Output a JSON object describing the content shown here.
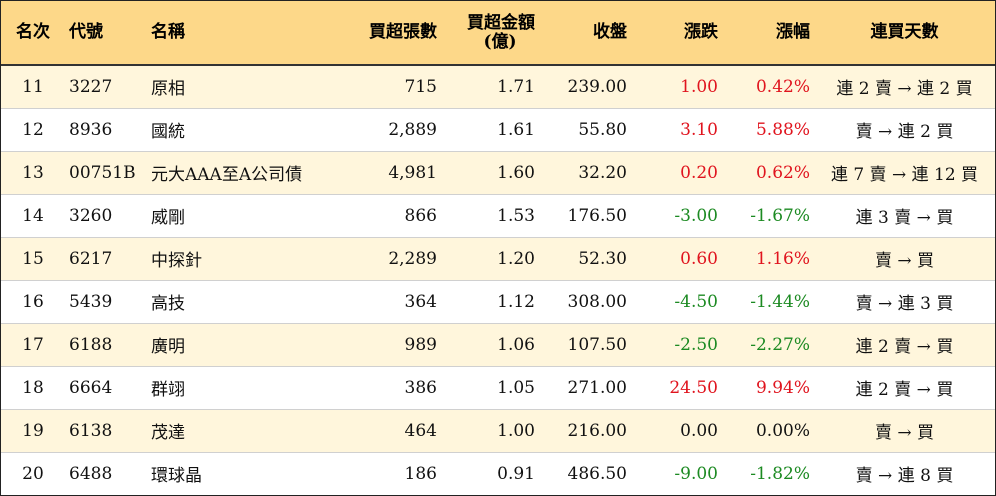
{
  "headers": {
    "rank": "名次",
    "code": "代號",
    "name": "名稱",
    "net_lots": "買超張數",
    "net_amount_line1": "買超金額",
    "net_amount_line2": "(億)",
    "close": "收盤",
    "change": "漲跌",
    "pct": "漲幅",
    "streak": "連買天數"
  },
  "colors": {
    "header_bg": "#fdd889",
    "alt_row_bg": "#fff6dc",
    "up": "#e0141e",
    "down": "#1c8a22"
  },
  "rows": [
    {
      "rank": "11",
      "code": "3227",
      "name": "原相",
      "net_lots": "715",
      "net_amount": "1.71",
      "close": "239.00",
      "change": "1.00",
      "pct": "0.42%",
      "streak": "連 2 賣 → 連 2 買",
      "dir": "up"
    },
    {
      "rank": "12",
      "code": "8936",
      "name": "國統",
      "net_lots": "2,889",
      "net_amount": "1.61",
      "close": "55.80",
      "change": "3.10",
      "pct": "5.88%",
      "streak": "賣 → 連 2 買",
      "dir": "up"
    },
    {
      "rank": "13",
      "code": "00751B",
      "name": "元大AAA至A公司債",
      "net_lots": "4,981",
      "net_amount": "1.60",
      "close": "32.20",
      "change": "0.20",
      "pct": "0.62%",
      "streak": "連 7 賣 → 連 12 買",
      "dir": "up"
    },
    {
      "rank": "14",
      "code": "3260",
      "name": "威剛",
      "net_lots": "866",
      "net_amount": "1.53",
      "close": "176.50",
      "change": "-3.00",
      "pct": "-1.67%",
      "streak": "連 3 賣 → 買",
      "dir": "down"
    },
    {
      "rank": "15",
      "code": "6217",
      "name": "中探針",
      "net_lots": "2,289",
      "net_amount": "1.20",
      "close": "52.30",
      "change": "0.60",
      "pct": "1.16%",
      "streak": "賣 → 買",
      "dir": "up"
    },
    {
      "rank": "16",
      "code": "5439",
      "name": "高技",
      "net_lots": "364",
      "net_amount": "1.12",
      "close": "308.00",
      "change": "-4.50",
      "pct": "-1.44%",
      "streak": "賣 → 連 3 買",
      "dir": "down"
    },
    {
      "rank": "17",
      "code": "6188",
      "name": "廣明",
      "net_lots": "989",
      "net_amount": "1.06",
      "close": "107.50",
      "change": "-2.50",
      "pct": "-2.27%",
      "streak": "連 2 賣 → 買",
      "dir": "down"
    },
    {
      "rank": "18",
      "code": "6664",
      "name": "群翊",
      "net_lots": "386",
      "net_amount": "1.05",
      "close": "271.00",
      "change": "24.50",
      "pct": "9.94%",
      "streak": "連 2 賣 → 買",
      "dir": "up"
    },
    {
      "rank": "19",
      "code": "6138",
      "name": "茂達",
      "net_lots": "464",
      "net_amount": "1.00",
      "close": "216.00",
      "change": "0.00",
      "pct": "0.00%",
      "streak": "賣 → 買",
      "dir": "flat"
    },
    {
      "rank": "20",
      "code": "6488",
      "name": "環球晶",
      "net_lots": "186",
      "net_amount": "0.91",
      "close": "486.50",
      "change": "-9.00",
      "pct": "-1.82%",
      "streak": "賣 → 連 8 買",
      "dir": "down"
    }
  ]
}
